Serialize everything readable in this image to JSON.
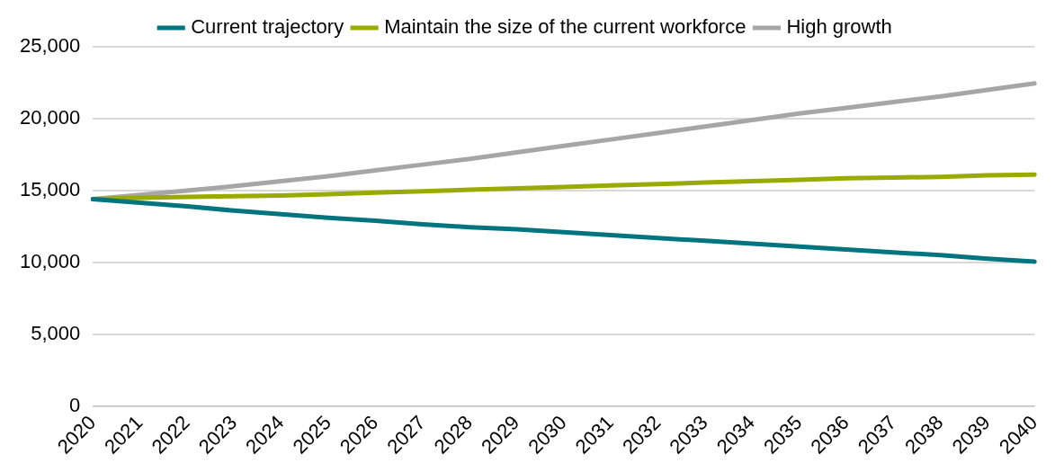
{
  "chart_data": {
    "type": "line",
    "categories": [
      "2020",
      "2021",
      "2022",
      "2023",
      "2024",
      "2025",
      "2026",
      "2027",
      "2028",
      "2029",
      "2030",
      "2031",
      "2032",
      "2033",
      "2034",
      "2035",
      "2036",
      "2037",
      "2038",
      "2039",
      "2040"
    ],
    "series": [
      {
        "name": "Current trajectory",
        "color": "#00747f",
        "values": [
          14400,
          14150,
          13900,
          13600,
          13350,
          13100,
          12900,
          12650,
          12450,
          12300,
          12100,
          11900,
          11700,
          11500,
          11300,
          11100,
          10900,
          10700,
          10500,
          10250,
          10050
        ]
      },
      {
        "name": "Maintain the size of the current workforce",
        "color": "#99aa00",
        "values": [
          14400,
          14500,
          14550,
          14600,
          14650,
          14750,
          14850,
          14950,
          15050,
          15150,
          15250,
          15350,
          15450,
          15550,
          15650,
          15750,
          15850,
          15900,
          15950,
          16050,
          16100
        ]
      },
      {
        "name": "High growth",
        "color": "#a6a6a6",
        "values": [
          14400,
          14700,
          15000,
          15300,
          15650,
          16000,
          16400,
          16800,
          17200,
          17650,
          18100,
          18550,
          19000,
          19450,
          19900,
          20350,
          20750,
          21150,
          21550,
          22000,
          22450
        ]
      }
    ],
    "ylim": [
      0,
      25000
    ],
    "yticks": [
      {
        "value": 0,
        "label": "0"
      },
      {
        "value": 5000,
        "label": "5,000"
      },
      {
        "value": 10000,
        "label": "10,000"
      },
      {
        "value": 15000,
        "label": "15,000"
      },
      {
        "value": 20000,
        "label": "20,000"
      },
      {
        "value": 25000,
        "label": "25,000"
      }
    ],
    "grid": "y",
    "legend": "top",
    "marker": "none",
    "line_style": "solid"
  }
}
